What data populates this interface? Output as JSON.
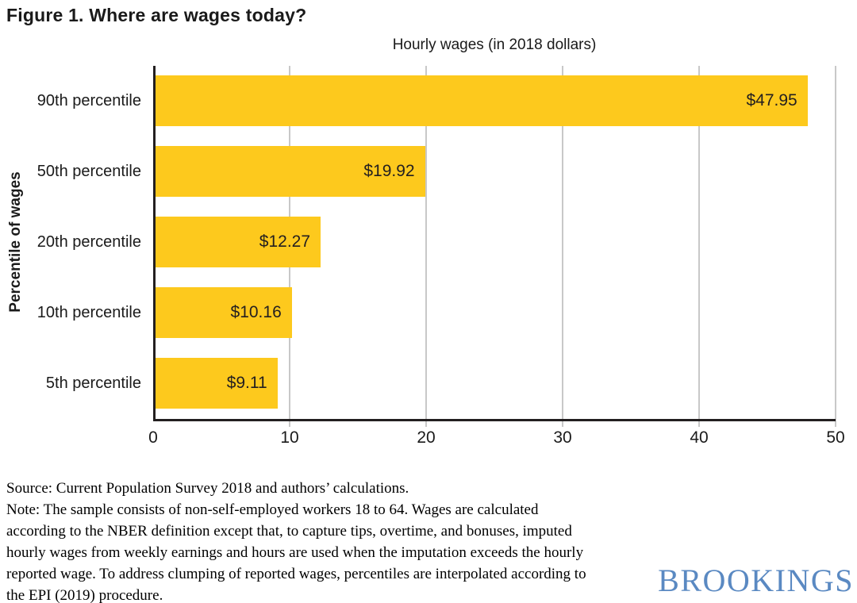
{
  "page": {
    "title": "Figure 1. Where are wages today?"
  },
  "chart_data": {
    "type": "bar",
    "orientation": "horizontal",
    "title": "Hourly wages (in 2018 dollars)",
    "ylabel": "Percentile of wages",
    "xlabel": "",
    "categories": [
      "90th percentile",
      "50th percentile",
      "20th percentile",
      "10th percentile",
      "5th percentile"
    ],
    "values": [
      47.95,
      19.92,
      12.27,
      10.16,
      9.11
    ],
    "value_labels": [
      "$47.95",
      "$19.92",
      "$12.27",
      "$10.16",
      "$9.11"
    ],
    "xlim": [
      0,
      50
    ],
    "x_ticks": [
      0,
      10,
      20,
      30,
      40,
      50
    ],
    "grid": "vertical gridlines at ticks, none at zero",
    "legend": "none",
    "bar_color": "#fdc91d",
    "axis_color": "#231f20",
    "grid_color": "#c8c8c8"
  },
  "footer": {
    "source": "Source: Current Population Survey 2018 and authors’ calculations.",
    "note": "Note: The sample consists of non-self-employed workers 18 to 64. Wages are calculated according to the NBER definition except that, to capture tips, overtime, and bonuses, imputed hourly wages from weekly earnings and hours are used when the imputation exceeds the hourly reported wage. To address clumping of reported wages, percentiles are interpolated according to the EPI (2019) procedure.",
    "logo": "BROOKINGS"
  },
  "colors": {
    "logo_blue": "#5a89c2"
  }
}
